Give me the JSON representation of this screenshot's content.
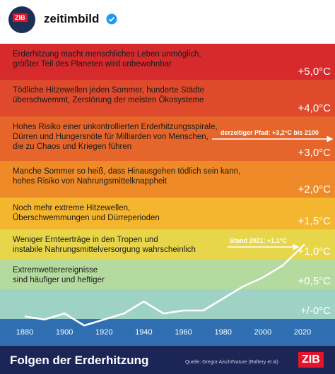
{
  "header": {
    "account": "zeitimbild",
    "logo": "ZIB"
  },
  "bands": [
    {
      "lines": [
        "Erderhitzung macht menschliches Leben unmöglich,",
        "größter Teil des Planeten wird unbewohnbar"
      ],
      "label": "+5,0°C"
    },
    {
      "lines": [
        "Tödliche Hitzewellen jeden Sommer, hunderte Städte",
        "überschwemmt, Zerstörung der meisten Ökosysteme"
      ],
      "label": "+4,0°C"
    },
    {
      "lines": [
        "Hohes Risiko einer unkontrollierten Erderhitzungsspirale,",
        "Dürren und Hungersnöte für Milliarden von Menschen,",
        "die zu Chaos und Kriegen führen"
      ],
      "label": "+3,0°C"
    },
    {
      "lines": [
        "Manche Sommer so heiß, dass Hinausgehen tödlich sein kann,",
        "hohes Risiko von Nahrungsmittelknappheit"
      ],
      "label": "+2,0°C"
    },
    {
      "lines": [
        "Noch mehr extreme Hitzewellen,",
        "Überschwemmungen und Dürreperioden"
      ],
      "label": "+1,5°C"
    },
    {
      "lines": [
        "Weniger Ernteerträge in den Tropen und",
        "instabile Nahrungsmittelversorgung wahrscheinlich"
      ],
      "label": "+1,0°C"
    },
    {
      "lines": [
        "Extremwetterereignisse",
        "sind häufiger und heftiger"
      ],
      "label": "+0,5°C"
    },
    {
      "lines": [],
      "label": "+/-0°C"
    }
  ],
  "annotations": [
    "derzeitiger Pfad: +3,2°C bis 2100",
    "Stand 2021: +1,1°C"
  ],
  "x_axis": [
    1880,
    1900,
    1920,
    1940,
    1960,
    1980,
    2000,
    2020
  ],
  "temperature_line": {
    "x": [
      1880,
      1890,
      1900,
      1910,
      1920,
      1930,
      1940,
      1950,
      1960,
      1970,
      1980,
      1990,
      2000,
      2010,
      2021
    ],
    "values": [
      -0.1,
      -0.15,
      -0.05,
      -0.25,
      -0.15,
      -0.05,
      0.15,
      -0.05,
      0.0,
      0.0,
      0.2,
      0.4,
      0.55,
      0.75,
      1.1
    ]
  },
  "footer": {
    "title": "Folgen der Erderhitzung",
    "source": "Quelle: Gregor Aisch/Nature (Raftery et al)",
    "logo": "ZIB"
  }
}
